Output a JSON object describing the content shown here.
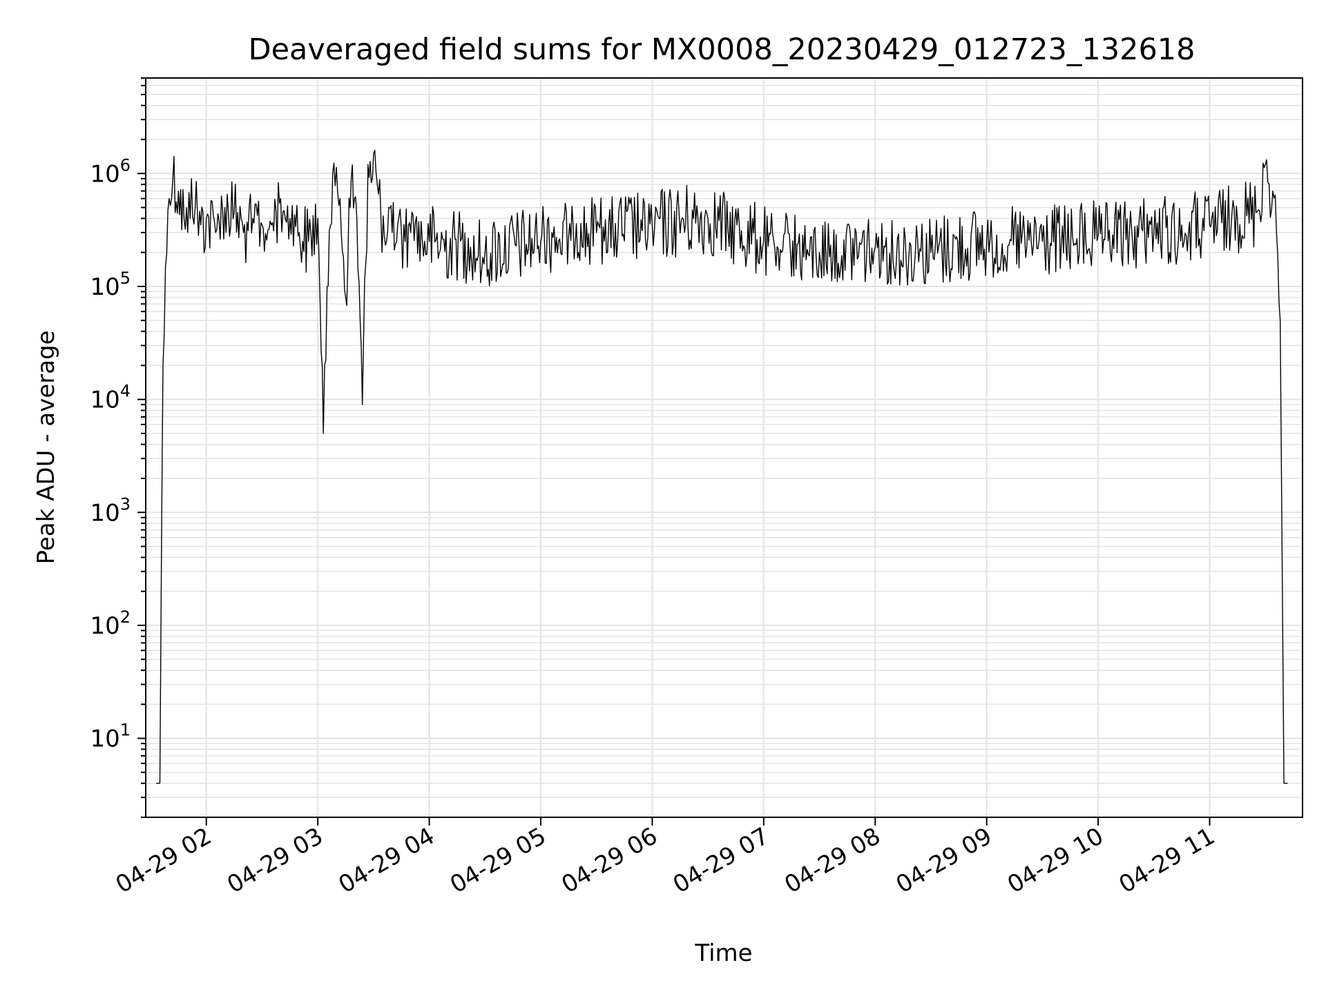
{
  "chart_data": {
    "type": "line",
    "title": "Deaveraged field sums for MX0008_20230429_012723_132618",
    "xlabel": "Time",
    "ylabel": "Peak ADU - average",
    "yscale": "log",
    "ylim": [
      2,
      7000000
    ],
    "xlim": [
      "2023-04-29 01:27:23",
      "2023-04-29 11:50:00"
    ],
    "grid": true,
    "line_color": "#000000",
    "grid_color": "#e3e3e3",
    "x_ticks": [
      {
        "label": "04-29 02",
        "time": "2023-04-29 02:00"
      },
      {
        "label": "04-29 03",
        "time": "2023-04-29 03:00"
      },
      {
        "label": "04-29 04",
        "time": "2023-04-29 04:00"
      },
      {
        "label": "04-29 05",
        "time": "2023-04-29 05:00"
      },
      {
        "label": "04-29 06",
        "time": "2023-04-29 06:00"
      },
      {
        "label": "04-29 07",
        "time": "2023-04-29 07:00"
      },
      {
        "label": "04-29 08",
        "time": "2023-04-29 08:00"
      },
      {
        "label": "04-29 09",
        "time": "2023-04-29 09:00"
      },
      {
        "label": "04-29 10",
        "time": "2023-04-29 10:00"
      },
      {
        "label": "04-29 11",
        "time": "2023-04-29 11:00"
      }
    ],
    "y_ticks": [
      {
        "base": "10",
        "exp": "1",
        "value": 10
      },
      {
        "base": "10",
        "exp": "2",
        "value": 100
      },
      {
        "base": "10",
        "exp": "3",
        "value": 1000
      },
      {
        "base": "10",
        "exp": "4",
        "value": 10000
      },
      {
        "base": "10",
        "exp": "5",
        "value": 100000
      },
      {
        "base": "10",
        "exp": "6",
        "value": 1000000
      }
    ],
    "series": [
      {
        "times": [
          "2023-04-29 01:33",
          "2023-04-29 01:35",
          "2023-04-29 01:36",
          "2023-04-29 01:38",
          "2023-04-29 01:40",
          "2023-04-29 01:42",
          "2023-04-29 01:45",
          "2023-04-29 01:48",
          "2023-04-29 01:50",
          "2023-04-29 01:52",
          "2023-04-29 01:54",
          "2023-04-29 01:57",
          "2023-04-29 02:00",
          "2023-04-29 02:05",
          "2023-04-29 02:10",
          "2023-04-29 02:15",
          "2023-04-29 02:20",
          "2023-04-29 02:25",
          "2023-04-29 02:30",
          "2023-04-29 02:35",
          "2023-04-29 02:40",
          "2023-04-29 02:45",
          "2023-04-29 02:50",
          "2023-04-29 02:55",
          "2023-04-29 03:00",
          "2023-04-29 03:03",
          "2023-04-29 03:05",
          "2023-04-29 03:08",
          "2023-04-29 03:12",
          "2023-04-29 03:15",
          "2023-04-29 03:18",
          "2023-04-29 03:21",
          "2023-04-29 03:24",
          "2023-04-29 03:27",
          "2023-04-29 03:30",
          "2023-04-29 03:32",
          "2023-04-29 03:34",
          "2023-04-29 03:37",
          "2023-04-29 03:40",
          "2023-04-29 03:43",
          "2023-04-29 03:47",
          "2023-04-29 03:50",
          "2023-04-29 04:00",
          "2023-04-29 04:30",
          "2023-04-29 05:00",
          "2023-04-29 05:30",
          "2023-04-29 06:00",
          "2023-04-29 06:30",
          "2023-04-29 07:00",
          "2023-04-29 07:30",
          "2023-04-29 08:00",
          "2023-04-29 08:30",
          "2023-04-29 09:00",
          "2023-04-29 09:30",
          "2023-04-29 10:00",
          "2023-04-29 10:30",
          "2023-04-29 11:00",
          "2023-04-29 11:15",
          "2023-04-29 11:25",
          "2023-04-29 11:30",
          "2023-04-29 11:34",
          "2023-04-29 11:36",
          "2023-04-29 11:38",
          "2023-04-29 11:40",
          "2023-04-29 11:42"
        ],
        "values": [
          4,
          4,
          1000,
          150000,
          600000,
          900000,
          700000,
          400000,
          300000,
          900000,
          500000,
          350000,
          400000,
          300000,
          500000,
          450000,
          300000,
          400000,
          350000,
          350000,
          600000,
          400000,
          300000,
          250000,
          400000,
          5000,
          100000,
          1000000,
          600000,
          80000,
          900000,
          400000,
          9000,
          1200000,
          1500000,
          800000,
          400000,
          250000,
          300000,
          350000,
          250000,
          300000,
          250000,
          200000,
          250000,
          300000,
          350000,
          400000,
          250000,
          200000,
          220000,
          200000,
          250000,
          250000,
          280000,
          300000,
          350000,
          400000,
          450000,
          1200000,
          700000,
          300000,
          50000,
          4,
          4
        ]
      }
    ]
  }
}
